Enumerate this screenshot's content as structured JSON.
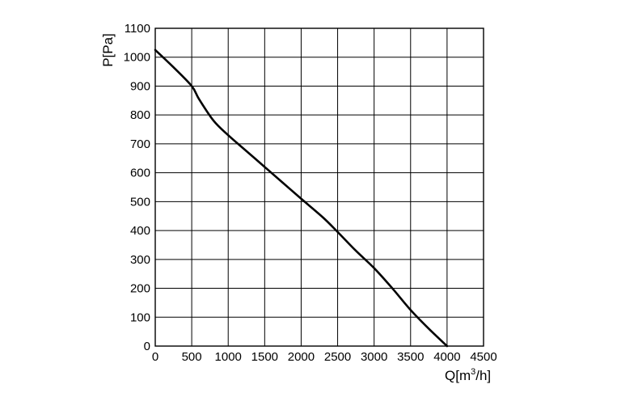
{
  "chart_data": {
    "type": "line",
    "title": "",
    "xlabel": {
      "base": "Q[m",
      "sup": "3",
      "tail": "/h]"
    },
    "ylabel": "P[Pa]",
    "xlim": [
      0,
      4500
    ],
    "ylim": [
      0,
      1100
    ],
    "xticks": [
      0,
      500,
      1000,
      1500,
      2000,
      2500,
      3000,
      3500,
      4000,
      4500
    ],
    "yticks": [
      0,
      100,
      200,
      300,
      400,
      500,
      600,
      700,
      800,
      900,
      1000,
      1100
    ],
    "grid": true,
    "legend": "none",
    "line_color": "#000000",
    "series": [
      {
        "x": [
          0,
          250,
          500,
          600,
          800,
          1000,
          1250,
          1500,
          1750,
          2000,
          2300,
          2500,
          2750,
          3000,
          3250,
          3500,
          3750,
          4000
        ],
        "y": [
          1025,
          965,
          900,
          855,
          780,
          730,
          675,
          620,
          565,
          510,
          445,
          395,
          330,
          270,
          200,
          125,
          60,
          0
        ]
      }
    ]
  }
}
